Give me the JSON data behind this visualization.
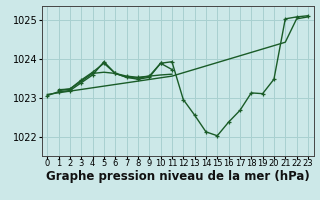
{
  "xlabel": "Graphe pression niveau de la mer (hPa)",
  "background_color": "#cce8e8",
  "grid_color": "#a8d0d0",
  "line_color": "#1a5c28",
  "ylim": [
    1021.5,
    1025.35
  ],
  "xlim": [
    -0.5,
    23.5
  ],
  "yticks": [
    1022,
    1023,
    1024,
    1025
  ],
  "ytick_labels": [
    "1022",
    "1023",
    "1024",
    "1025"
  ],
  "xticks": [
    0,
    1,
    2,
    3,
    4,
    5,
    6,
    7,
    8,
    9,
    10,
    11,
    12,
    13,
    14,
    15,
    16,
    17,
    18,
    19,
    20,
    21,
    22,
    23
  ],
  "fontsize_xlabel": 8.5,
  "fontsize_yticks": 7,
  "fontsize_xticks": 6,
  "line1_x": [
    0,
    1,
    2,
    3,
    4,
    5,
    6,
    7,
    8,
    9,
    10,
    11,
    12,
    13,
    14,
    15,
    16,
    17,
    18,
    19,
    20,
    21,
    22,
    23
  ],
  "line1_y": [
    1023.05,
    1023.15,
    1023.18,
    1023.38,
    1023.58,
    1023.92,
    1023.62,
    1023.52,
    1023.47,
    1023.52,
    1023.88,
    1023.92,
    1022.95,
    1022.55,
    1022.12,
    1022.02,
    1022.37,
    1022.67,
    1023.12,
    1023.1,
    1023.47,
    1025.02,
    1025.07,
    1025.1
  ],
  "line1_markers": true,
  "line2_x": [
    0,
    11,
    21,
    22,
    23
  ],
  "line2_y": [
    1023.08,
    1023.55,
    1024.42,
    1025.02,
    1025.07
  ],
  "line2_markers": false,
  "line3_x": [
    1,
    2,
    3,
    4,
    5,
    6,
    7,
    8,
    9,
    10,
    11
  ],
  "line3_y": [
    1023.18,
    1023.22,
    1023.42,
    1023.62,
    1023.65,
    1023.62,
    1023.52,
    1023.5,
    1023.55,
    1023.58,
    1023.6
  ],
  "line3_markers": false,
  "line4_x": [
    1,
    2,
    3,
    4,
    5,
    6,
    7,
    8,
    9,
    10,
    11
  ],
  "line4_y": [
    1023.2,
    1023.22,
    1023.45,
    1023.65,
    1023.88,
    1023.62,
    1023.55,
    1023.52,
    1023.55,
    1023.88,
    1023.72
  ],
  "line4_markers": true
}
